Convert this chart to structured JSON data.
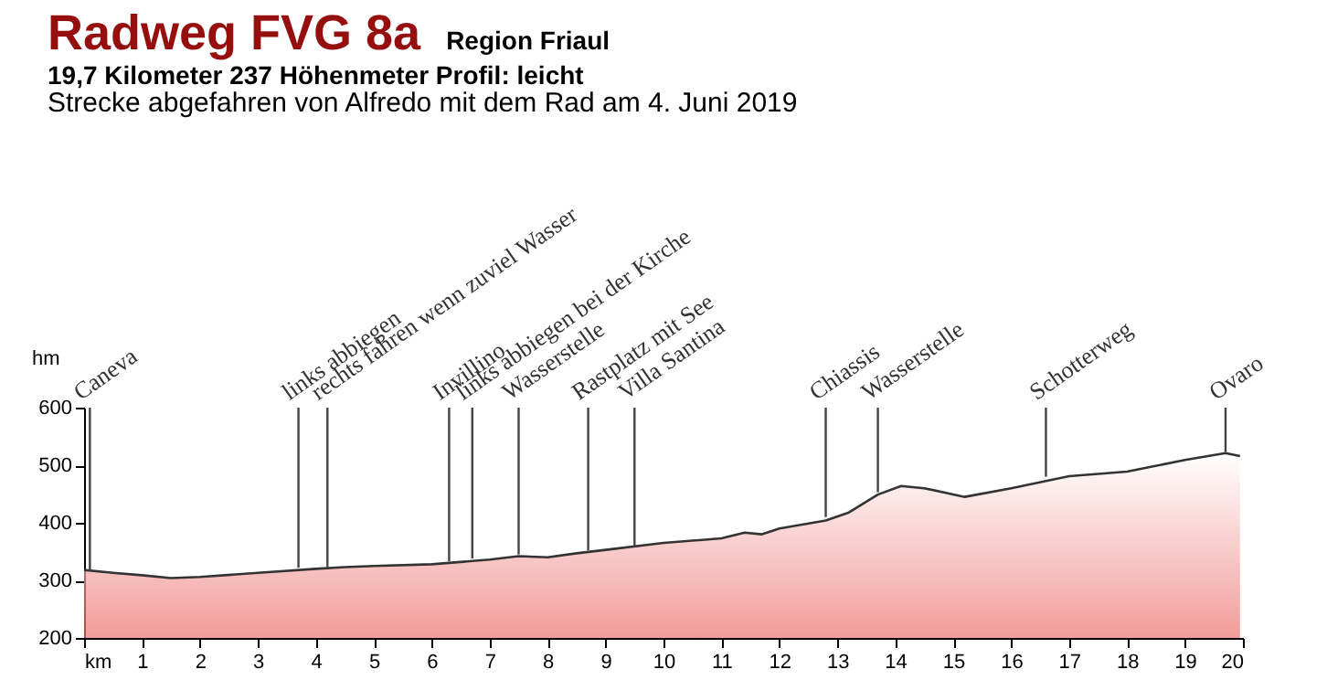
{
  "chart_data": {
    "type": "area",
    "title": "Radweg FVG 8a",
    "subtitle": "Region Friaul",
    "xlabel": null,
    "ylabel": "hm",
    "x": [
      0,
      0.5,
      1,
      1.5,
      2,
      3,
      4,
      4.5,
      5,
      6,
      7,
      7.5,
      8,
      8.5,
      9,
      10,
      11,
      11.4,
      11.7,
      12,
      12.8,
      13.2,
      13.7,
      14.1,
      14.5,
      15.2,
      16,
      17,
      18,
      19,
      19.7,
      19.95
    ],
    "series": [
      {
        "color": "#e01a14",
        "values": [
          318,
          313,
          309,
          304,
          306,
          313,
          320,
          323,
          325,
          328,
          336,
          342,
          340,
          347,
          353,
          365,
          373,
          383,
          380,
          390,
          404,
          418,
          449,
          464,
          460,
          445,
          460,
          481,
          489,
          509,
          521,
          516
        ]
      }
    ],
    "xlim": [
      0,
      20
    ],
    "xticks": [
      {
        "value": 0,
        "label": "km"
      },
      1,
      2,
      3,
      4,
      5,
      6,
      7,
      8,
      9,
      10,
      11,
      12,
      13,
      14,
      15,
      16,
      17,
      18,
      19,
      20
    ],
    "ylim": [
      200,
      600
    ],
    "yticks": [
      200,
      300,
      400,
      500,
      600
    ],
    "grid": false,
    "marker": "none",
    "line_style": "solid",
    "annotations": [
      "19,7 Kilometer  237 Höhenmeter  Profil: leicht",
      "Strecke abgefahren von Alfredo mit dem Rad am 4. Juni 2019",
      {
        "text": "Caneva",
        "x": 0.1,
        "y": 318
      },
      {
        "text": "links abbiegen",
        "x": 3.7,
        "y": 322
      },
      {
        "text": "rechts fahren wenn zuviel Wasser",
        "x": 4.2,
        "y": 322
      },
      {
        "text": "Invillino",
        "x": 6.3,
        "y": 333
      },
      {
        "text": "links abbiegen bei der Kirche",
        "x": 6.7,
        "y": 338
      },
      {
        "text": "Wasserstelle",
        "x": 7.5,
        "y": 345
      },
      {
        "text": "Rastplatz mit See",
        "x": 8.7,
        "y": 352
      },
      {
        "text": "Villa Santina",
        "x": 9.5,
        "y": 360
      },
      {
        "text": "Chiassis",
        "x": 12.8,
        "y": 410
      },
      {
        "text": "Wasserstelle",
        "x": 13.7,
        "y": 453
      },
      {
        "text": "Schotterweg",
        "x": 16.6,
        "y": 480
      },
      {
        "text": "Ovaro",
        "x": 19.7,
        "y": 523
      }
    ]
  }
}
